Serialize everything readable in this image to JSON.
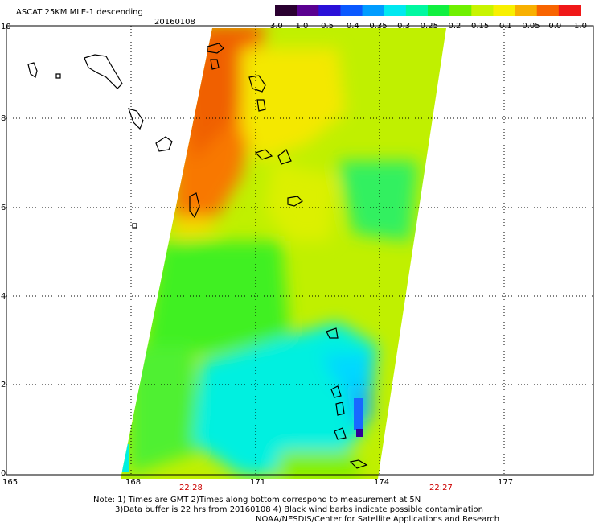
{
  "title": "ASCAT 25KM MLE-1 descending",
  "date": "20160108",
  "colorbar": {
    "labels": [
      "-3.0",
      "-1.0",
      "-0.5",
      "-0.4",
      "-0.35",
      "-0.3",
      "-0.25",
      "-0.2",
      "-0.15",
      "-0.1",
      "-0.05",
      "0.0",
      "1.0"
    ],
    "colors": [
      "#2a0030",
      "#5a0090",
      "#2a10d8",
      "#0a58ff",
      "#009cff",
      "#00e8f0",
      "#00f8a0",
      "#10f040",
      "#70f000",
      "#c8f400",
      "#f8f000",
      "#f8b000",
      "#f86400",
      "#f01818"
    ]
  },
  "axes": {
    "lat_ticks": [
      "0",
      "2",
      "4",
      "6",
      "8",
      "10"
    ],
    "lon_ticks": [
      "165",
      "168",
      "171",
      "174",
      "177"
    ]
  },
  "times": [
    "22:28",
    "22:27"
  ],
  "notes": {
    "line1": "Note: 1) Times are GMT 2)Times along bottom correspond to measurement at 5N",
    "line2": "3)Data buffer is 22 hrs from 20160108 4) Black wind barbs indicate possible contamination",
    "line3": "NOAA/NESDIS/Center for Satellite Applications and Research"
  }
}
